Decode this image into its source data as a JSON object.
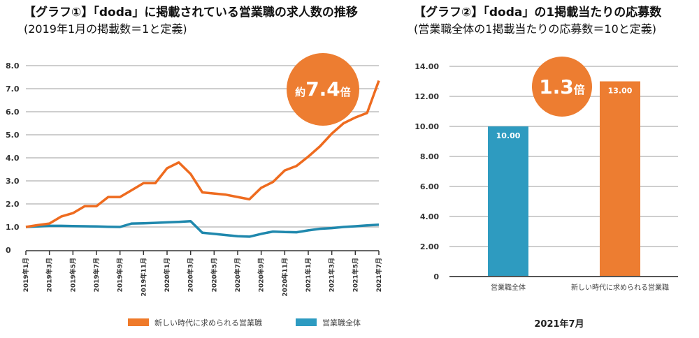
{
  "chart_data": [
    {
      "type": "line",
      "title": "【グラフ①】「doda」に掲載されている営業職の求人数の推移",
      "subtitle": "(2019年1月の掲載数＝1と定義)",
      "xlabel": "",
      "ylabel": "",
      "ylim": [
        0,
        8
      ],
      "yticks": [
        "0",
        "1.0",
        "2.0",
        "3.0",
        "4.0",
        "5.0",
        "6.0",
        "7.0",
        "8.0"
      ],
      "ytick_values": [
        0,
        1,
        2,
        3,
        4,
        5,
        6,
        7,
        8
      ],
      "grid": true,
      "x": [
        "2019年1月",
        "2019年2月",
        "2019年3月",
        "2019年4月",
        "2019年5月",
        "2019年6月",
        "2019年7月",
        "2019年8月",
        "2019年9月",
        "2019年10月",
        "2019年11月",
        "2019年12月",
        "2020年1月",
        "2020年2月",
        "2020年3月",
        "2020年4月",
        "2020年5月",
        "2020年6月",
        "2020年7月",
        "2020年8月",
        "2020年9月",
        "2020年10月",
        "2020年11月",
        "2020年12月",
        "2021年1月",
        "2021年2月",
        "2021年3月",
        "2021年4月",
        "2021年5月",
        "2021年6月",
        "2021年7月"
      ],
      "xtick_labels": [
        "2019年1月",
        "2019年3月",
        "2019年5月",
        "2019年7月",
        "2019年9月",
        "2019年11月",
        "2020年1月",
        "2020年3月",
        "2020年5月",
        "2020年7月",
        "2020年9月",
        "2020年11月",
        "2021年1月",
        "2021年3月",
        "2021年5月",
        "2021年7月"
      ],
      "series": [
        {
          "name": "新しい時代に求められる営業職",
          "color": "#ee6b1f",
          "values": [
            1.0,
            1.08,
            1.15,
            1.45,
            1.6,
            1.9,
            1.9,
            2.3,
            2.3,
            2.6,
            2.9,
            2.9,
            3.55,
            3.8,
            3.3,
            2.5,
            2.45,
            2.4,
            2.3,
            2.2,
            2.7,
            2.95,
            3.45,
            3.65,
            4.05,
            4.5,
            5.05,
            5.5,
            5.75,
            5.95,
            7.35
          ]
        },
        {
          "name": "営業職全体",
          "color": "#1f88ad",
          "values": [
            1.0,
            1.02,
            1.05,
            1.05,
            1.04,
            1.03,
            1.02,
            1.01,
            1.0,
            1.15,
            1.16,
            1.18,
            1.2,
            1.22,
            1.25,
            0.75,
            0.7,
            0.65,
            0.6,
            0.58,
            0.7,
            0.8,
            0.78,
            0.77,
            0.85,
            0.92,
            0.95,
            1.0,
            1.03,
            1.07,
            1.1
          ]
        }
      ],
      "annotation": {
        "prefix": "約",
        "value": "7.4",
        "suffix": "倍",
        "color": "#ed7d31"
      },
      "legend": {
        "placement": "bottom",
        "items": [
          {
            "label": "新しい時代に求められる営業職",
            "color": "#ef7a2a"
          },
          {
            "label": "営業職全体",
            "color": "#2d9bc1"
          }
        ]
      }
    },
    {
      "type": "bar",
      "title": "【グラフ②】「doda」の1掲載当たりの応募数",
      "subtitle": "(営業職全体の1掲載当たりの応募数＝10と定義)",
      "xlabel": "2021年7月",
      "ylabel": "",
      "ylim": [
        0,
        14
      ],
      "yticks": [
        "0",
        "2.00",
        "4.00",
        "6.00",
        "8.00",
        "10.00",
        "12.00",
        "14.00"
      ],
      "ytick_values": [
        0,
        2,
        4,
        6,
        8,
        10,
        12,
        14
      ],
      "grid": true,
      "categories": [
        "営業職全体",
        "新しい時代に求められる営業職"
      ],
      "values": [
        10.0,
        13.0
      ],
      "data_labels": [
        "10.00",
        "13.00"
      ],
      "colors": [
        "#2e9bc0",
        "#ed7d31"
      ],
      "annotation": {
        "prefix": "",
        "value": "1.3",
        "suffix": "倍",
        "color": "#ed7d31"
      }
    }
  ],
  "colors": {
    "grid": "#bdbdbd",
    "axis": "#555555",
    "text": "#222222"
  }
}
